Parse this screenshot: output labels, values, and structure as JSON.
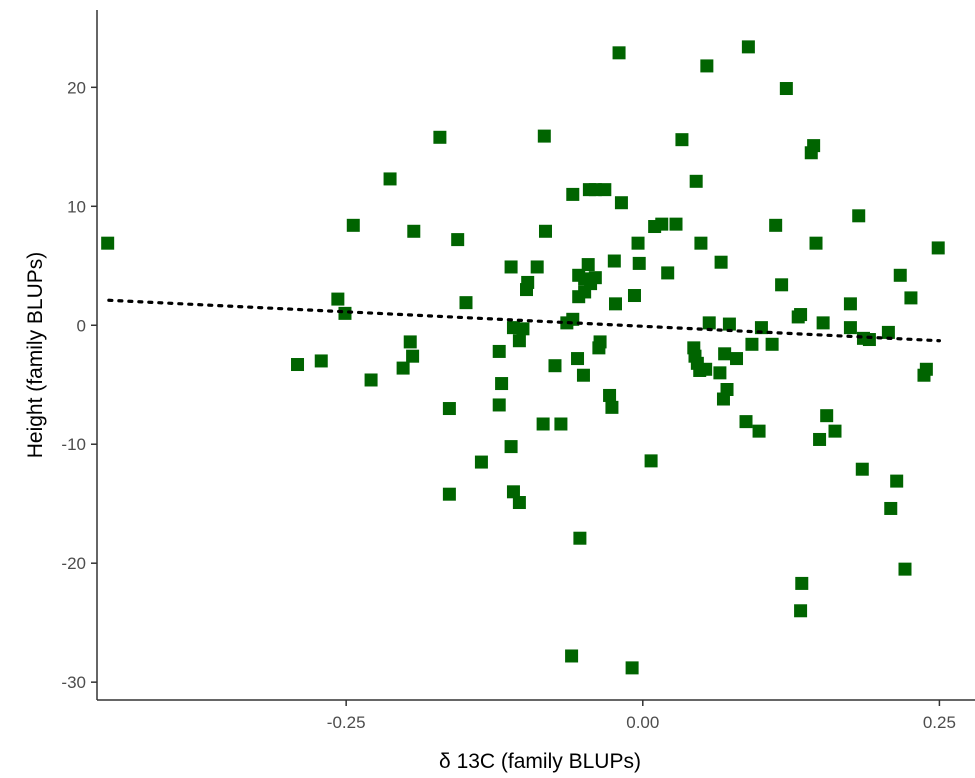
{
  "chart_data": {
    "type": "scatter",
    "title": "",
    "xlabel": "δ 13C (family BLUPs)",
    "ylabel": "Height (family BLUPs)",
    "xlim": [
      -0.46,
      0.28
    ],
    "ylim": [
      -31.5,
      26.5
    ],
    "x_ticks": [
      -0.25,
      0.0,
      0.25
    ],
    "x_tick_labels": [
      "-0.25",
      "0.00",
      "0.25"
    ],
    "y_ticks": [
      -30,
      -20,
      -10,
      0,
      10,
      20
    ],
    "y_tick_labels": [
      "-30",
      "-20",
      "-10",
      "0",
      "10",
      "20"
    ],
    "grid": false,
    "legend": "none",
    "marker": "square",
    "point_color": "#006400",
    "trend_line": {
      "style": "dotted",
      "color": "#000000",
      "x": [
        -0.45,
        0.25
      ],
      "y": [
        2.1,
        -1.3
      ]
    },
    "series": [
      {
        "points": [
          [
            -0.451,
            6.9
          ],
          [
            -0.291,
            -3.3
          ],
          [
            -0.271,
            -3.0
          ],
          [
            -0.257,
            2.2
          ],
          [
            -0.251,
            1.0
          ],
          [
            -0.244,
            8.4
          ],
          [
            -0.229,
            -4.6
          ],
          [
            -0.213,
            12.3
          ],
          [
            -0.202,
            -3.6
          ],
          [
            -0.196,
            -1.4
          ],
          [
            -0.194,
            -2.6
          ],
          [
            -0.193,
            7.9
          ],
          [
            -0.171,
            15.8
          ],
          [
            -0.163,
            -7.0
          ],
          [
            -0.163,
            -14.2
          ],
          [
            -0.156,
            7.2
          ],
          [
            -0.149,
            1.9
          ],
          [
            -0.136,
            -11.5
          ],
          [
            -0.121,
            -2.2
          ],
          [
            -0.121,
            -6.7
          ],
          [
            -0.119,
            -4.9
          ],
          [
            -0.111,
            -10.2
          ],
          [
            -0.111,
            4.9
          ],
          [
            -0.109,
            -14.0
          ],
          [
            -0.109,
            -0.2
          ],
          [
            -0.104,
            -14.9
          ],
          [
            -0.104,
            -1.3
          ],
          [
            -0.101,
            -0.3
          ],
          [
            -0.098,
            3.0
          ],
          [
            -0.097,
            3.6
          ],
          [
            -0.089,
            4.9
          ],
          [
            -0.084,
            -8.3
          ],
          [
            -0.083,
            15.9
          ],
          [
            -0.082,
            7.9
          ],
          [
            -0.074,
            -3.4
          ],
          [
            -0.069,
            -8.3
          ],
          [
            -0.064,
            0.2
          ],
          [
            -0.06,
            -27.8
          ],
          [
            -0.059,
            11.0
          ],
          [
            -0.059,
            0.5
          ],
          [
            -0.055,
            -2.8
          ],
          [
            -0.054,
            2.4
          ],
          [
            -0.054,
            4.2
          ],
          [
            -0.053,
            -17.9
          ],
          [
            -0.05,
            -4.2
          ],
          [
            -0.049,
            3.9
          ],
          [
            -0.049,
            2.8
          ],
          [
            -0.046,
            5.1
          ],
          [
            -0.045,
            11.4
          ],
          [
            -0.044,
            3.5
          ],
          [
            -0.04,
            4.0
          ],
          [
            -0.04,
            11.4
          ],
          [
            -0.037,
            -1.9
          ],
          [
            -0.036,
            -1.4
          ],
          [
            -0.032,
            11.4
          ],
          [
            -0.028,
            -5.9
          ],
          [
            -0.026,
            -6.9
          ],
          [
            -0.024,
            5.4
          ],
          [
            -0.023,
            1.8
          ],
          [
            -0.02,
            22.9
          ],
          [
            -0.018,
            10.3
          ],
          [
            -0.009,
            -28.8
          ],
          [
            -0.007,
            2.5
          ],
          [
            -0.004,
            6.9
          ],
          [
            -0.003,
            5.2
          ],
          [
            0.007,
            -11.4
          ],
          [
            0.01,
            8.3
          ],
          [
            0.016,
            8.5
          ],
          [
            0.021,
            4.4
          ],
          [
            0.028,
            8.5
          ],
          [
            0.033,
            15.6
          ],
          [
            0.043,
            -1.9
          ],
          [
            0.044,
            -2.6
          ],
          [
            0.045,
            12.1
          ],
          [
            0.046,
            -3.2
          ],
          [
            0.048,
            -3.8
          ],
          [
            0.049,
            6.9
          ],
          [
            0.053,
            -3.7
          ],
          [
            0.054,
            21.8
          ],
          [
            0.056,
            0.2
          ],
          [
            0.065,
            -4.0
          ],
          [
            0.066,
            5.3
          ],
          [
            0.068,
            -6.2
          ],
          [
            0.069,
            -2.4
          ],
          [
            0.071,
            -5.4
          ],
          [
            0.073,
            0.1
          ],
          [
            0.079,
            -2.8
          ],
          [
            0.087,
            -8.1
          ],
          [
            0.089,
            23.4
          ],
          [
            0.092,
            -1.6
          ],
          [
            0.098,
            -8.9
          ],
          [
            0.1,
            -0.2
          ],
          [
            0.109,
            -1.6
          ],
          [
            0.112,
            8.4
          ],
          [
            0.117,
            3.4
          ],
          [
            0.121,
            19.9
          ],
          [
            0.131,
            0.7
          ],
          [
            0.133,
            0.9
          ],
          [
            0.133,
            -24.0
          ],
          [
            0.134,
            -21.7
          ],
          [
            0.142,
            14.5
          ],
          [
            0.144,
            15.1
          ],
          [
            0.146,
            6.9
          ],
          [
            0.149,
            -9.6
          ],
          [
            0.152,
            0.2
          ],
          [
            0.155,
            -7.6
          ],
          [
            0.162,
            -8.9
          ],
          [
            0.175,
            1.8
          ],
          [
            0.175,
            -0.2
          ],
          [
            0.182,
            9.2
          ],
          [
            0.185,
            -12.1
          ],
          [
            0.186,
            -1.1
          ],
          [
            0.191,
            -1.2
          ],
          [
            0.207,
            -0.6
          ],
          [
            0.209,
            -15.4
          ],
          [
            0.214,
            -13.1
          ],
          [
            0.217,
            4.2
          ],
          [
            0.221,
            -20.5
          ],
          [
            0.226,
            2.3
          ],
          [
            0.237,
            -4.2
          ],
          [
            0.239,
            -3.7
          ],
          [
            0.249,
            6.5
          ]
        ]
      }
    ]
  }
}
